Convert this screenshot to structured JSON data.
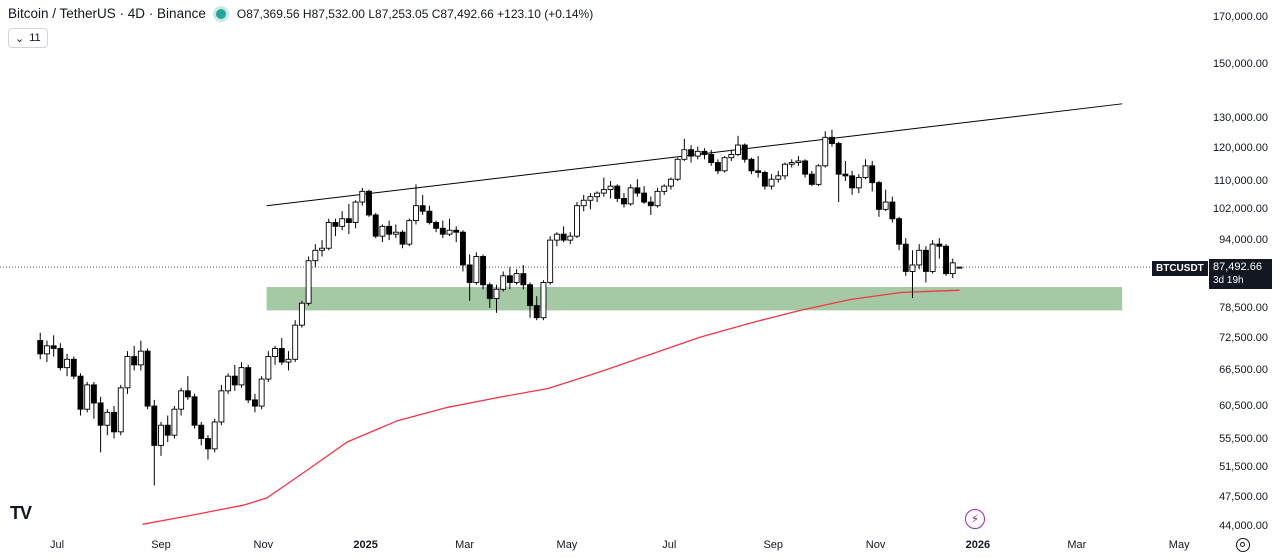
{
  "header": {
    "symbol_title": "Bitcoin / TetherUS · 4D · Binance",
    "ohlc": {
      "open_label": "O",
      "open": "87,369.56",
      "high_label": "H",
      "high": "87,532.00",
      "low_label": "L",
      "low": "87,253.05",
      "close_label": "C",
      "close": "87,492.66",
      "change": "+123.10 (+0.14%)"
    },
    "indicators_toggle": {
      "chevron": "⌄",
      "count": "11"
    }
  },
  "price_axis": {
    "ticks": [
      "170,000.00",
      "150,000.00",
      "130,000.00",
      "120,000.00",
      "110,000.00",
      "102,000.00",
      "94,000.00",
      "78,500.00",
      "72,500.00",
      "66,500.00",
      "60,500.00",
      "55,500.00",
      "51,500.00",
      "47,500.00",
      "44,000.00"
    ]
  },
  "time_axis": {
    "ticks": [
      {
        "label": "Jul",
        "year": false
      },
      {
        "label": "Sep",
        "year": false
      },
      {
        "label": "Nov",
        "year": false
      },
      {
        "label": "2025",
        "year": true
      },
      {
        "label": "Mar",
        "year": false
      },
      {
        "label": "May",
        "year": false
      },
      {
        "label": "Jul",
        "year": false
      },
      {
        "label": "Sep",
        "year": false
      },
      {
        "label": "Nov",
        "year": false
      },
      {
        "label": "2026",
        "year": true
      },
      {
        "label": "Mar",
        "year": false
      },
      {
        "label": "May",
        "year": false
      }
    ]
  },
  "last_price": {
    "symbol_label": "BTCUSDT",
    "price": "87,492.66",
    "countdown": "3d 19h"
  },
  "colors": {
    "up_fill": "#ffffff",
    "down_fill": "#000000",
    "candle_border": "#000000",
    "moving_average": "#f23645",
    "support_zone": "#a5c8a5",
    "trendline": "#000000",
    "accent_purple": "#9c27b0",
    "live_dot": "#26a69a"
  },
  "icons": {
    "logo": "tradingview-logo-icon",
    "bolt": "lightning-bolt-icon",
    "settings": "settings-gear-icon"
  },
  "chart_data": {
    "type": "candlestick",
    "interval": "4D",
    "scale": "log",
    "y_range": [
      43000,
      180000
    ],
    "trendline": {
      "start": [
        "2024-11-03",
        103000
      ],
      "end": [
        "2026-03-28",
        135000
      ]
    },
    "support_zone": {
      "from": "2024-11-03",
      "to": "2026-03-28",
      "low": 78000,
      "high": 83000
    },
    "moving_average": [
      [
        "2024-08-21",
        44200
      ],
      [
        "2024-09-20",
        45300
      ],
      [
        "2024-10-20",
        46500
      ],
      [
        "2024-11-03",
        47400
      ],
      [
        "2024-11-27",
        51000
      ],
      [
        "2024-12-21",
        55000
      ],
      [
        "2025-01-20",
        58200
      ],
      [
        "2025-02-19",
        60300
      ],
      [
        "2025-03-21",
        61900
      ],
      [
        "2025-04-20",
        63400
      ],
      [
        "2025-05-20",
        66200
      ],
      [
        "2025-06-19",
        69300
      ],
      [
        "2025-07-19",
        72600
      ],
      [
        "2025-08-18",
        75400
      ],
      [
        "2025-09-17",
        78000
      ],
      [
        "2025-10-17",
        80300
      ],
      [
        "2025-11-16",
        81800
      ],
      [
        "2025-12-21",
        82300
      ]
    ],
    "candles": [
      [
        "2024-06-21",
        72000,
        73500,
        68500,
        69500
      ],
      [
        "2024-06-25",
        69500,
        72000,
        68000,
        71000
      ],
      [
        "2024-06-29",
        71000,
        73000,
        69000,
        70500
      ],
      [
        "2024-07-03",
        70500,
        71500,
        66500,
        67000
      ],
      [
        "2024-07-07",
        67000,
        69500,
        65500,
        68500
      ],
      [
        "2024-07-11",
        68500,
        69000,
        65000,
        65500
      ],
      [
        "2024-07-15",
        65500,
        66000,
        59000,
        60000
      ],
      [
        "2024-07-19",
        60000,
        64500,
        59500,
        64000
      ],
      [
        "2024-07-23",
        64000,
        64500,
        58500,
        61000
      ],
      [
        "2024-07-27",
        61000,
        62000,
        53500,
        57500
      ],
      [
        "2024-07-31",
        57500,
        60000,
        56000,
        59500
      ],
      [
        "2024-08-04",
        59500,
        60500,
        55500,
        56500
      ],
      [
        "2024-08-08",
        56500,
        64000,
        56000,
        63500
      ],
      [
        "2024-08-12",
        63500,
        70000,
        62500,
        69000
      ],
      [
        "2024-08-16",
        69000,
        71000,
        66500,
        67500
      ],
      [
        "2024-08-20",
        67500,
        72000,
        66500,
        70000
      ],
      [
        "2024-08-24",
        70000,
        70500,
        60000,
        60500
      ],
      [
        "2024-08-28",
        60500,
        61500,
        49000,
        54500
      ],
      [
        "2024-09-01",
        54500,
        58000,
        53000,
        57500
      ],
      [
        "2024-09-05",
        57500,
        59000,
        55000,
        56000
      ],
      [
        "2024-09-09",
        56000,
        60500,
        55500,
        60000
      ],
      [
        "2024-09-13",
        60000,
        63500,
        59000,
        63000
      ],
      [
        "2024-09-17",
        63000,
        65500,
        61500,
        62000
      ],
      [
        "2024-09-21",
        62000,
        62500,
        57000,
        57500
      ],
      [
        "2024-09-25",
        57500,
        58000,
        54500,
        55500
      ],
      [
        "2024-09-29",
        55500,
        56000,
        52500,
        54000
      ],
      [
        "2024-10-03",
        54000,
        58500,
        53500,
        58000
      ],
      [
        "2024-10-07",
        58000,
        64000,
        57500,
        63000
      ],
      [
        "2024-10-11",
        63000,
        66000,
        62500,
        65500
      ],
      [
        "2024-10-15",
        65500,
        67500,
        63000,
        64000
      ],
      [
        "2024-10-19",
        64000,
        68000,
        63500,
        67000
      ],
      [
        "2024-10-23",
        67000,
        67500,
        61000,
        61500
      ],
      [
        "2024-10-27",
        61500,
        62500,
        59500,
        60500
      ],
      [
        "2024-10-31",
        60500,
        65500,
        60000,
        65000
      ],
      [
        "2024-11-04",
        65000,
        70000,
        64500,
        69000
      ],
      [
        "2024-11-08",
        69000,
        71000,
        67500,
        70500
      ],
      [
        "2024-11-12",
        70500,
        72500,
        67500,
        68000
      ],
      [
        "2024-11-16",
        68000,
        70000,
        66500,
        68500
      ],
      [
        "2024-11-20",
        68500,
        76000,
        68000,
        75000
      ],
      [
        "2024-11-24",
        75000,
        80000,
        74500,
        79500
      ],
      [
        "2024-11-28",
        79500,
        90000,
        79000,
        89000
      ],
      [
        "2024-12-02",
        89000,
        93000,
        87500,
        91500
      ],
      [
        "2024-12-06",
        91500,
        94000,
        90000,
        92000
      ],
      [
        "2024-12-10",
        92000,
        99500,
        91500,
        98500
      ],
      [
        "2024-12-14",
        98500,
        99500,
        95000,
        97500
      ],
      [
        "2024-12-18",
        97500,
        101500,
        96500,
        99500
      ],
      [
        "2024-12-22",
        99500,
        103500,
        95500,
        98500
      ],
      [
        "2024-12-26",
        98500,
        104500,
        97000,
        104000
      ],
      [
        "2024-12-30",
        104000,
        108000,
        103000,
        107000
      ],
      [
        "2025-01-03",
        107000,
        107500,
        100000,
        100500
      ],
      [
        "2025-01-07",
        100500,
        101000,
        94500,
        95000
      ],
      [
        "2025-01-11",
        95000,
        98000,
        93500,
        97500
      ],
      [
        "2025-01-15",
        97500,
        99000,
        94000,
        95500
      ],
      [
        "2025-01-19",
        95500,
        98000,
        94500,
        96000
      ],
      [
        "2025-01-23",
        96000,
        96500,
        92000,
        93000
      ],
      [
        "2025-01-27",
        93000,
        99500,
        92500,
        99000
      ],
      [
        "2025-01-31",
        99000,
        109000,
        98000,
        103000
      ],
      [
        "2025-02-04",
        103000,
        106000,
        100500,
        101500
      ],
      [
        "2025-02-08",
        101500,
        103000,
        98000,
        98500
      ],
      [
        "2025-02-12",
        98500,
        99000,
        96000,
        97000
      ],
      [
        "2025-02-16",
        97000,
        99000,
        94500,
        95500
      ],
      [
        "2025-02-20",
        95500,
        99500,
        95000,
        96500
      ],
      [
        "2025-02-24",
        96500,
        97500,
        93500,
        96000
      ],
      [
        "2025-02-28",
        96000,
        96500,
        86500,
        88000
      ],
      [
        "2025-03-04",
        88000,
        90500,
        80000,
        84000
      ],
      [
        "2025-03-08",
        84000,
        91000,
        83500,
        90000
      ],
      [
        "2025-03-12",
        90000,
        90500,
        82500,
        83500
      ],
      [
        "2025-03-16",
        83500,
        84000,
        78500,
        80500
      ],
      [
        "2025-03-20",
        80500,
        83500,
        77500,
        82500
      ],
      [
        "2025-03-24",
        82500,
        86500,
        82000,
        85500
      ],
      [
        "2025-03-28",
        85500,
        87500,
        82500,
        84000
      ],
      [
        "2025-04-01",
        84000,
        87000,
        83500,
        86000
      ],
      [
        "2025-04-05",
        86000,
        88000,
        82500,
        83500
      ],
      [
        "2025-04-09",
        83500,
        84000,
        76500,
        79000
      ],
      [
        "2025-04-13",
        79000,
        81000,
        76000,
        76500
      ],
      [
        "2025-04-17",
        76500,
        84500,
        76000,
        84000
      ],
      [
        "2025-04-21",
        84000,
        95000,
        83500,
        94000
      ],
      [
        "2025-04-25",
        94000,
        96000,
        92500,
        95500
      ],
      [
        "2025-04-29",
        95500,
        97500,
        93500,
        94000
      ],
      [
        "2025-05-03",
        94000,
        96000,
        93000,
        95000
      ],
      [
        "2025-05-07",
        95000,
        104000,
        94500,
        103000
      ],
      [
        "2025-05-11",
        103000,
        106000,
        101500,
        104500
      ],
      [
        "2025-05-15",
        104500,
        106500,
        102000,
        105500
      ],
      [
        "2025-05-19",
        105500,
        107000,
        104000,
        106500
      ],
      [
        "2025-05-23",
        106500,
        111000,
        105500,
        107500
      ],
      [
        "2025-05-27",
        107500,
        110000,
        105000,
        108500
      ],
      [
        "2025-05-31",
        108500,
        109000,
        104000,
        105000
      ],
      [
        "2025-06-04",
        105000,
        106500,
        102500,
        103500
      ],
      [
        "2025-06-08",
        103500,
        109000,
        103000,
        108000
      ],
      [
        "2025-06-12",
        108000,
        110500,
        105500,
        106500
      ],
      [
        "2025-06-16",
        106500,
        108500,
        103500,
        104000
      ],
      [
        "2025-06-20",
        104000,
        105500,
        100500,
        103000
      ],
      [
        "2025-06-24",
        103000,
        108000,
        102500,
        107000
      ],
      [
        "2025-06-28",
        107000,
        109000,
        106000,
        108500
      ],
      [
        "2025-07-02",
        108500,
        111000,
        107500,
        110500
      ],
      [
        "2025-07-06",
        110500,
        117000,
        110000,
        116500
      ],
      [
        "2025-07-10",
        116500,
        123000,
        116000,
        119500
      ],
      [
        "2025-07-14",
        119500,
        121000,
        115500,
        117500
      ],
      [
        "2025-07-18",
        117500,
        120500,
        116500,
        119000
      ],
      [
        "2025-07-22",
        119000,
        120000,
        116500,
        118000
      ],
      [
        "2025-07-26",
        118000,
        119500,
        114500,
        115500
      ],
      [
        "2025-07-30",
        115500,
        116500,
        112000,
        113000
      ],
      [
        "2025-08-03",
        113000,
        117500,
        112500,
        117000
      ],
      [
        "2025-08-07",
        117000,
        119500,
        116000,
        118000
      ],
      [
        "2025-08-11",
        118000,
        124000,
        117500,
        121000
      ],
      [
        "2025-08-15",
        121000,
        121500,
        115500,
        116500
      ],
      [
        "2025-08-19",
        116500,
        117000,
        112000,
        113000
      ],
      [
        "2025-08-23",
        113000,
        117500,
        111000,
        112500
      ],
      [
        "2025-08-27",
        112500,
        113000,
        107500,
        108500
      ],
      [
        "2025-08-31",
        108500,
        112000,
        107500,
        110500
      ],
      [
        "2025-09-04",
        110500,
        113000,
        109500,
        111500
      ],
      [
        "2025-09-08",
        111500,
        115500,
        110500,
        115000
      ],
      [
        "2025-09-12",
        115000,
        116500,
        114000,
        115500
      ],
      [
        "2025-09-16",
        115500,
        117500,
        114500,
        116000
      ],
      [
        "2025-09-20",
        116000,
        116500,
        111000,
        112000
      ],
      [
        "2025-09-24",
        112000,
        113000,
        108500,
        109000
      ],
      [
        "2025-09-28",
        109000,
        115000,
        108500,
        114500
      ],
      [
        "2025-10-02",
        114500,
        125500,
        114000,
        123500
      ],
      [
        "2025-10-06",
        123500,
        126000,
        120500,
        121500
      ],
      [
        "2025-10-10",
        121500,
        122000,
        104000,
        112000
      ],
      [
        "2025-10-14",
        112000,
        116000,
        110000,
        111500
      ],
      [
        "2025-10-18",
        111500,
        113000,
        106000,
        108000
      ],
      [
        "2025-10-22",
        108000,
        112000,
        106500,
        111000
      ],
      [
        "2025-10-26",
        111000,
        116500,
        110500,
        114500
      ],
      [
        "2025-10-30",
        114500,
        116000,
        107000,
        109500
      ],
      [
        "2025-11-03",
        109500,
        110000,
        100000,
        102000
      ],
      [
        "2025-11-07",
        102000,
        107500,
        101500,
        104000
      ],
      [
        "2025-11-11",
        104000,
        105500,
        98500,
        99500
      ],
      [
        "2025-11-15",
        99500,
        100000,
        91500,
        93000
      ],
      [
        "2025-11-19",
        93000,
        94500,
        85500,
        86500
      ],
      [
        "2025-11-23",
        86500,
        91500,
        80600,
        88000
      ],
      [
        "2025-11-27",
        88000,
        93000,
        87000,
        91500
      ],
      [
        "2025-12-01",
        91500,
        92500,
        84000,
        86500
      ],
      [
        "2025-12-05",
        86500,
        94000,
        86000,
        93000
      ],
      [
        "2025-12-09",
        93000,
        94500,
        89500,
        92500
      ],
      [
        "2025-12-13",
        92500,
        93000,
        85500,
        86000
      ],
      [
        "2025-12-17",
        86000,
        89500,
        85000,
        88500
      ],
      [
        "2025-12-21",
        87369.56,
        87532.0,
        87253.05,
        87492.66
      ]
    ]
  }
}
